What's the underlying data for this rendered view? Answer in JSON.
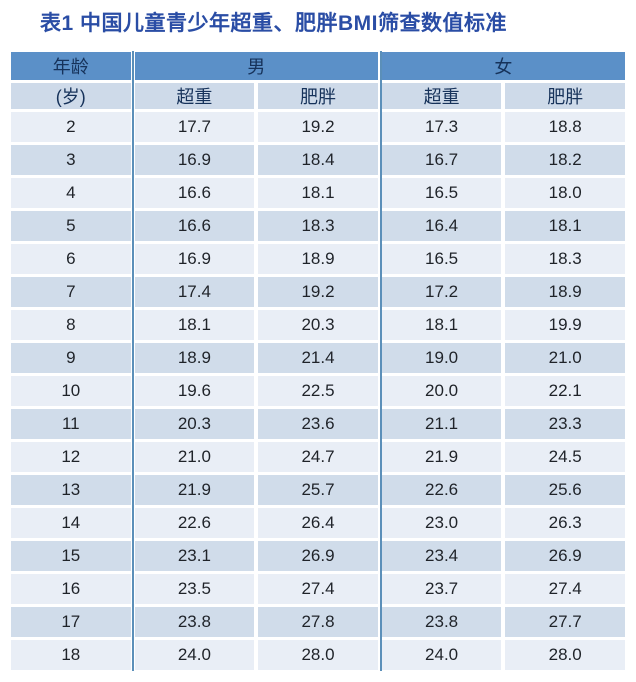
{
  "title": "表1 中国儿童青少年超重、肥胖BMI筛查数值标准",
  "chart_data": {
    "type": "table",
    "title": "表1 中国儿童青少年超重、肥胖BMI筛查数值标准",
    "column_groups": [
      {
        "label": "年龄",
        "span": 1
      },
      {
        "label": "男",
        "span": 2
      },
      {
        "label": "女",
        "span": 2
      }
    ],
    "sub_headers": [
      "(岁)",
      "超重",
      "肥胖",
      "超重",
      "肥胖"
    ],
    "rows": [
      [
        "2",
        "17.7",
        "19.2",
        "17.3",
        "18.8"
      ],
      [
        "3",
        "16.9",
        "18.4",
        "16.7",
        "18.2"
      ],
      [
        "4",
        "16.6",
        "18.1",
        "16.5",
        "18.0"
      ],
      [
        "5",
        "16.6",
        "18.3",
        "16.4",
        "18.1"
      ],
      [
        "6",
        "16.9",
        "18.9",
        "16.5",
        "18.3"
      ],
      [
        "7",
        "17.4",
        "19.2",
        "17.2",
        "18.9"
      ],
      [
        "8",
        "18.1",
        "20.3",
        "18.1",
        "19.9"
      ],
      [
        "9",
        "18.9",
        "21.4",
        "19.0",
        "21.0"
      ],
      [
        "10",
        "19.6",
        "22.5",
        "20.0",
        "22.1"
      ],
      [
        "11",
        "20.3",
        "23.6",
        "21.1",
        "23.3"
      ],
      [
        "12",
        "21.0",
        "24.7",
        "21.9",
        "24.5"
      ],
      [
        "13",
        "21.9",
        "25.7",
        "22.6",
        "25.6"
      ],
      [
        "14",
        "22.6",
        "26.4",
        "23.0",
        "26.3"
      ],
      [
        "15",
        "23.1",
        "26.9",
        "23.4",
        "26.9"
      ],
      [
        "16",
        "23.5",
        "27.4",
        "23.7",
        "27.4"
      ],
      [
        "17",
        "23.8",
        "27.8",
        "23.8",
        "27.7"
      ],
      [
        "18",
        "24.0",
        "28.0",
        "24.0",
        "28.0"
      ]
    ]
  },
  "colors": {
    "title_text": "#2A4DA5",
    "header_bg": "#5B90C8",
    "header_text": "#16325A",
    "subheader_bg": "#CEDAE9",
    "row_light_bg": "#E9EEF6",
    "row_dark_bg": "#D0DCEA",
    "divider_line": "#5B8FB9",
    "cell_text": "#1F2329",
    "page_bg": "#FFFFFF"
  }
}
